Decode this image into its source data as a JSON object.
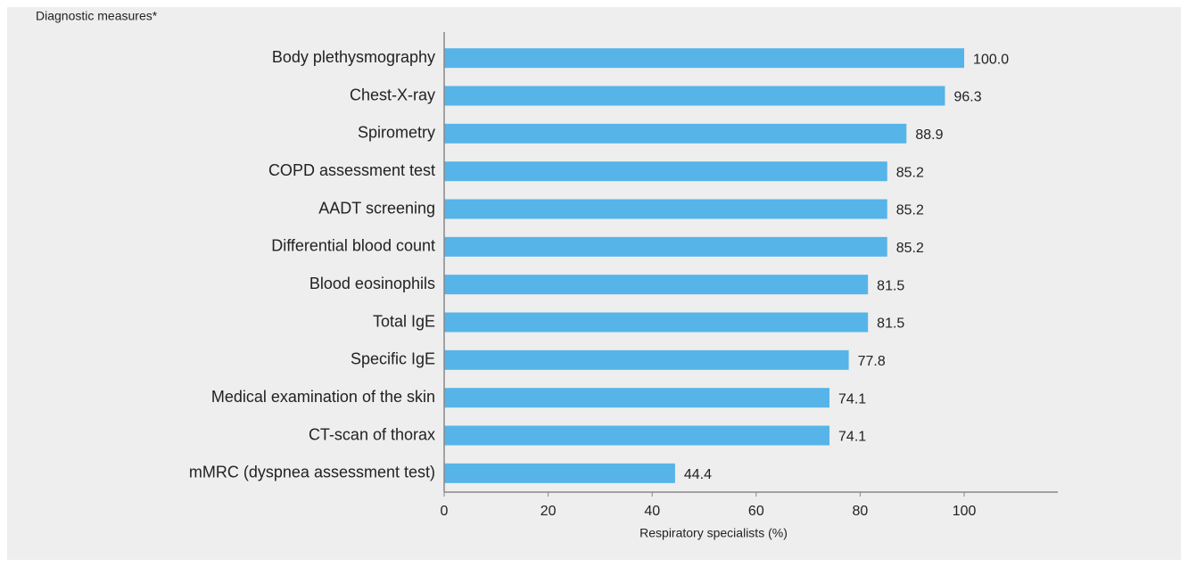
{
  "chart_data": {
    "type": "bar",
    "orientation": "horizontal",
    "title": "Diagnostic measures*",
    "x_label": "Respiratory specialists (%)",
    "categories": [
      "Body plethysmography",
      "Chest-X-ray",
      "Spirometry",
      "COPD assessment test",
      "AADT screening",
      "Differential blood count",
      "Blood eosinophils",
      "Total IgE",
      "Specific IgE",
      "Medical examination of the skin",
      "CT-scan of thorax",
      "mMRC (dyspnea assessment test)"
    ],
    "values": [
      100.0,
      96.3,
      88.9,
      85.2,
      85.2,
      85.2,
      81.5,
      81.5,
      77.8,
      74.1,
      74.1,
      44.4
    ],
    "value_labels": [
      "100.0",
      "96.3",
      "88.9",
      "85.2",
      "85.2",
      "85.2",
      "81.5",
      "81.5",
      "77.8",
      "74.1",
      "74.1",
      "44.4"
    ],
    "color": "#56b4e8",
    "xlim": [
      0,
      118
    ],
    "xticks": [
      0,
      20,
      40,
      60,
      80,
      100
    ],
    "grid": false
  }
}
